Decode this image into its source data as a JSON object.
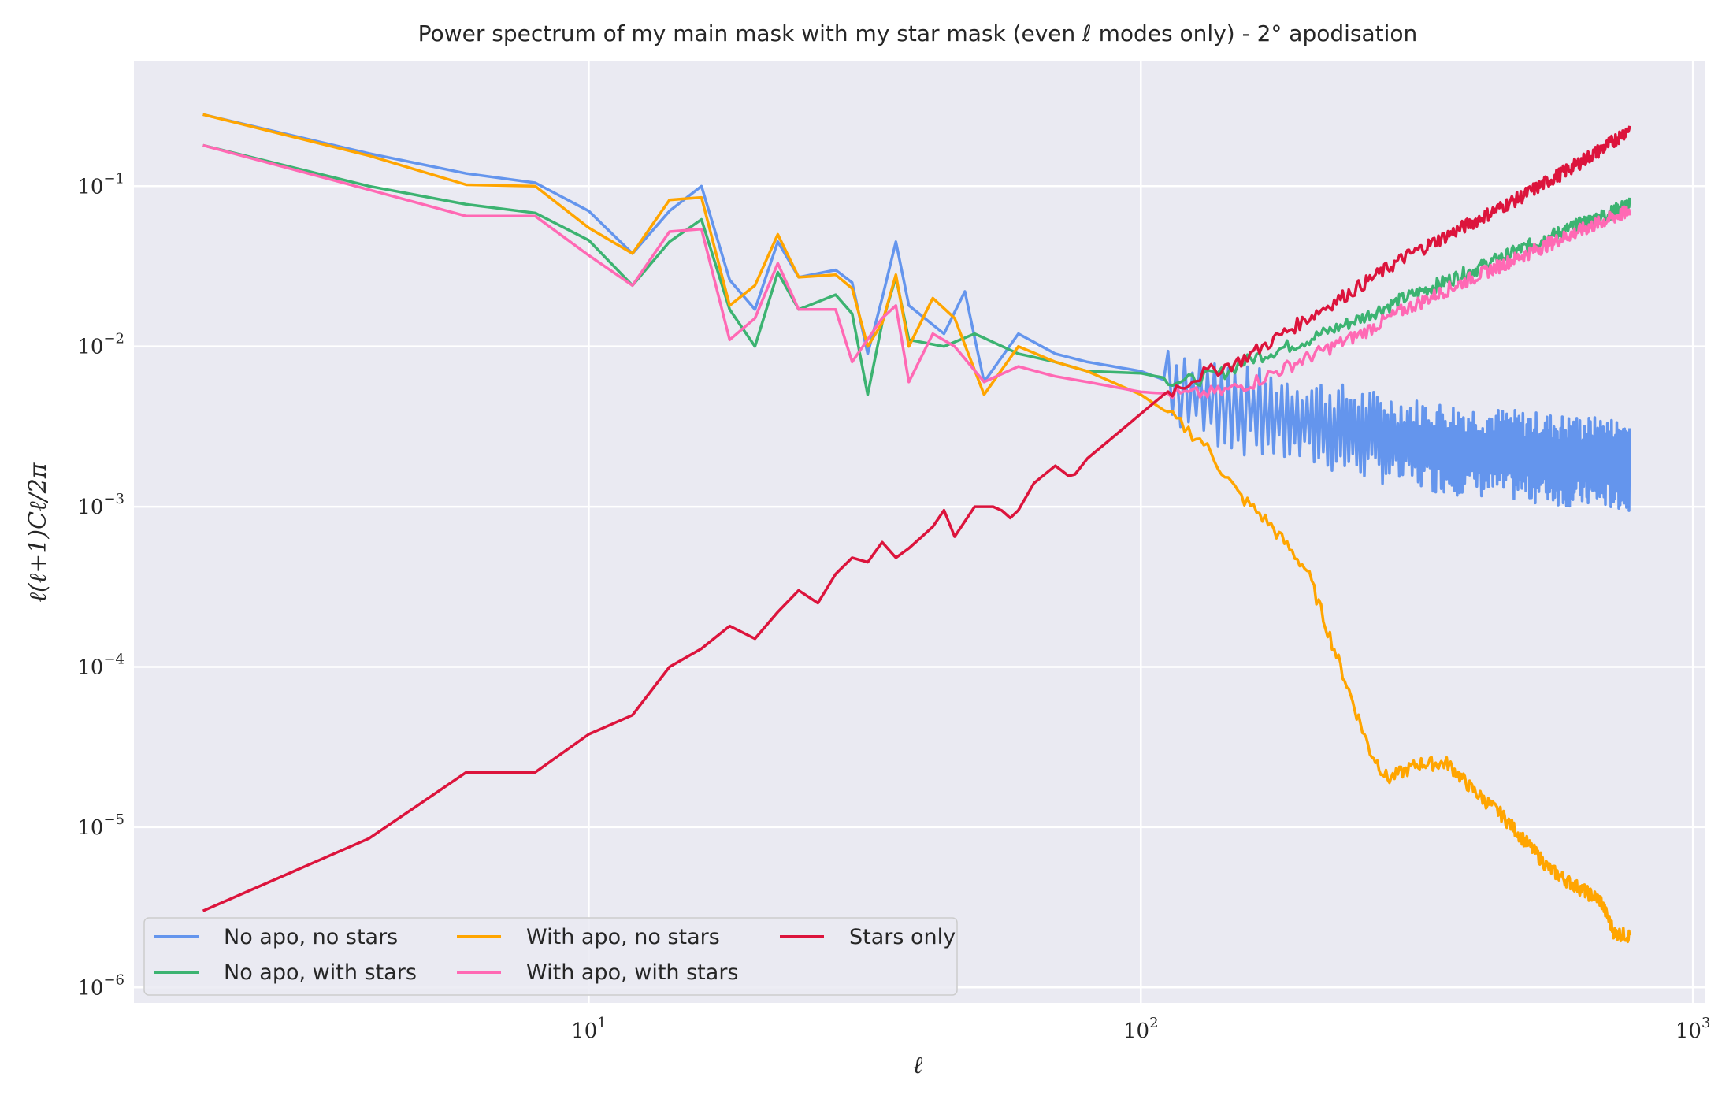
{
  "chart_data": {
    "type": "line",
    "title": "Power spectrum of my main mask with my star mask (even ℓ modes only) - 2° apodisation",
    "xlabel": "ℓ",
    "ylabel": "ℓ(ℓ+1)Cℓ/2π",
    "xscale": "log",
    "yscale": "log",
    "xlim": [
      1.5,
      1050
    ],
    "ylim": [
      8e-07,
      0.6
    ],
    "xticks": [
      {
        "value": 10,
        "base": "10",
        "exp": "1"
      },
      {
        "value": 100,
        "base": "10",
        "exp": "2"
      },
      {
        "value": 1000,
        "base": "10",
        "exp": "3"
      }
    ],
    "yticks": [
      {
        "value": 1e-06,
        "base": "10",
        "exp": "−6"
      },
      {
        "value": 1e-05,
        "base": "10",
        "exp": "−5"
      },
      {
        "value": 0.0001,
        "base": "10",
        "exp": "−4"
      },
      {
        "value": 0.001,
        "base": "10",
        "exp": "−3"
      },
      {
        "value": 0.01,
        "base": "10",
        "exp": "−2"
      },
      {
        "value": 0.1,
        "base": "10",
        "exp": "−1"
      }
    ],
    "grid": true,
    "legend_position": "lower-left",
    "legend_columns": 3,
    "series": [
      {
        "name": "No apo, no stars",
        "color": "#6495ed",
        "noise": "alt",
        "points": [
          [
            2,
            0.28
          ],
          [
            4,
            0.16
          ],
          [
            6,
            0.12
          ],
          [
            8,
            0.105
          ],
          [
            10,
            0.07
          ],
          [
            12,
            0.038
          ],
          [
            14,
            0.07
          ],
          [
            16,
            0.1
          ],
          [
            18,
            0.026
          ],
          [
            20,
            0.017
          ],
          [
            22,
            0.045
          ],
          [
            24,
            0.027
          ],
          [
            28,
            0.03
          ],
          [
            30,
            0.025
          ],
          [
            32,
            0.009
          ],
          [
            34,
            0.02
          ],
          [
            36,
            0.045
          ],
          [
            38,
            0.018
          ],
          [
            44,
            0.012
          ],
          [
            48,
            0.022
          ],
          [
            52,
            0.006
          ],
          [
            60,
            0.012
          ],
          [
            70,
            0.009
          ],
          [
            80,
            0.008
          ],
          [
            100,
            0.007
          ],
          [
            130,
            0.005
          ],
          [
            150,
            0.0042
          ],
          [
            200,
            0.0035
          ],
          [
            300,
            0.0026
          ],
          [
            400,
            0.0023
          ],
          [
            600,
            0.002
          ],
          [
            768,
            0.0019
          ]
        ]
      },
      {
        "name": "No apo, with stars",
        "color": "#3cb371",
        "noise": "mild",
        "points": [
          [
            2,
            0.18
          ],
          [
            4,
            0.1
          ],
          [
            6,
            0.077
          ],
          [
            8,
            0.068
          ],
          [
            10,
            0.046
          ],
          [
            12,
            0.024
          ],
          [
            14,
            0.045
          ],
          [
            16,
            0.062
          ],
          [
            18,
            0.017
          ],
          [
            20,
            0.01
          ],
          [
            22,
            0.029
          ],
          [
            24,
            0.017
          ],
          [
            28,
            0.021
          ],
          [
            30,
            0.016
          ],
          [
            32,
            0.005
          ],
          [
            34,
            0.014
          ],
          [
            36,
            0.027
          ],
          [
            38,
            0.011
          ],
          [
            44,
            0.01
          ],
          [
            50,
            0.012
          ],
          [
            60,
            0.009
          ],
          [
            70,
            0.008
          ],
          [
            80,
            0.007
          ],
          [
            100,
            0.0068
          ],
          [
            120,
            0.006
          ],
          [
            140,
            0.0068
          ],
          [
            160,
            0.0085
          ],
          [
            200,
            0.011
          ],
          [
            250,
            0.015
          ],
          [
            300,
            0.02
          ],
          [
            400,
            0.03
          ],
          [
            500,
            0.042
          ],
          [
            600,
            0.055
          ],
          [
            700,
            0.067
          ],
          [
            768,
            0.078
          ]
        ]
      },
      {
        "name": "With apo, no stars",
        "color": "#ffa500",
        "noise": "mild",
        "points": [
          [
            2,
            0.28
          ],
          [
            4,
            0.155
          ],
          [
            6,
            0.102
          ],
          [
            8,
            0.1
          ],
          [
            10,
            0.055
          ],
          [
            12,
            0.038
          ],
          [
            14,
            0.082
          ],
          [
            16,
            0.085
          ],
          [
            18,
            0.018
          ],
          [
            20,
            0.024
          ],
          [
            22,
            0.05
          ],
          [
            24,
            0.027
          ],
          [
            28,
            0.028
          ],
          [
            30,
            0.023
          ],
          [
            32,
            0.01
          ],
          [
            34,
            0.014
          ],
          [
            36,
            0.028
          ],
          [
            38,
            0.01
          ],
          [
            42,
            0.02
          ],
          [
            46,
            0.015
          ],
          [
            52,
            0.005
          ],
          [
            60,
            0.01
          ],
          [
            70,
            0.008
          ],
          [
            80,
            0.007
          ],
          [
            100,
            0.005
          ],
          [
            110,
            0.004
          ],
          [
            130,
            0.0025
          ],
          [
            150,
            0.0012
          ],
          [
            170,
            0.0008
          ],
          [
            200,
            0.0004
          ],
          [
            230,
            0.0001
          ],
          [
            260,
            3e-05
          ],
          [
            280,
            2e-05
          ],
          [
            320,
            2.5e-05
          ],
          [
            360,
            2.5e-05
          ],
          [
            400,
            1.7e-05
          ],
          [
            450,
            1.2e-05
          ],
          [
            500,
            8e-06
          ],
          [
            550,
            5.5e-06
          ],
          [
            600,
            4.5e-06
          ],
          [
            680,
            3.5e-06
          ],
          [
            720,
            2.2e-06
          ],
          [
            768,
            2.1e-06
          ]
        ]
      },
      {
        "name": "With apo, with stars",
        "color": "#ff69b4",
        "noise": "mild",
        "points": [
          [
            2,
            0.18
          ],
          [
            4,
            0.095
          ],
          [
            6,
            0.065
          ],
          [
            8,
            0.065
          ],
          [
            10,
            0.037
          ],
          [
            12,
            0.024
          ],
          [
            14,
            0.052
          ],
          [
            16,
            0.054
          ],
          [
            18,
            0.011
          ],
          [
            20,
            0.015
          ],
          [
            22,
            0.033
          ],
          [
            24,
            0.017
          ],
          [
            28,
            0.017
          ],
          [
            30,
            0.008
          ],
          [
            34,
            0.015
          ],
          [
            36,
            0.018
          ],
          [
            38,
            0.006
          ],
          [
            42,
            0.012
          ],
          [
            46,
            0.01
          ],
          [
            52,
            0.006
          ],
          [
            60,
            0.0075
          ],
          [
            70,
            0.0065
          ],
          [
            80,
            0.006
          ],
          [
            100,
            0.0052
          ],
          [
            120,
            0.005
          ],
          [
            140,
            0.0052
          ],
          [
            160,
            0.006
          ],
          [
            200,
            0.0085
          ],
          [
            250,
            0.012
          ],
          [
            300,
            0.017
          ],
          [
            400,
            0.027
          ],
          [
            500,
            0.038
          ],
          [
            600,
            0.05
          ],
          [
            700,
            0.062
          ],
          [
            768,
            0.07
          ]
        ]
      },
      {
        "name": "Stars only",
        "color": "#dc143c",
        "noise": "mild",
        "points": [
          [
            2,
            3e-06
          ],
          [
            4,
            8.5e-06
          ],
          [
            6,
            2.2e-05
          ],
          [
            8,
            2.2e-05
          ],
          [
            10,
            3.8e-05
          ],
          [
            12,
            5e-05
          ],
          [
            14,
            0.0001
          ],
          [
            16,
            0.00013
          ],
          [
            18,
            0.00018
          ],
          [
            20,
            0.00015
          ],
          [
            22,
            0.00022
          ],
          [
            24,
            0.0003
          ],
          [
            26,
            0.00025
          ],
          [
            28,
            0.00038
          ],
          [
            30,
            0.00048
          ],
          [
            32,
            0.00045
          ],
          [
            34,
            0.0006
          ],
          [
            36,
            0.00048
          ],
          [
            38,
            0.00055
          ],
          [
            42,
            0.00075
          ],
          [
            44,
            0.00095
          ],
          [
            46,
            0.00065
          ],
          [
            50,
            0.001
          ],
          [
            55,
            0.001
          ],
          [
            58,
            0.00085
          ],
          [
            60,
            0.00095
          ],
          [
            64,
            0.0014
          ],
          [
            70,
            0.0018
          ],
          [
            75,
            0.0015
          ],
          [
            80,
            0.002
          ],
          [
            90,
            0.0028
          ],
          [
            100,
            0.0038
          ],
          [
            110,
            0.005
          ],
          [
            130,
            0.0068
          ],
          [
            150,
            0.008
          ],
          [
            170,
            0.0105
          ],
          [
            200,
            0.015
          ],
          [
            250,
            0.024
          ],
          [
            300,
            0.036
          ],
          [
            400,
            0.06
          ],
          [
            500,
            0.09
          ],
          [
            600,
            0.13
          ],
          [
            700,
            0.18
          ],
          [
            768,
            0.23
          ]
        ]
      }
    ]
  }
}
